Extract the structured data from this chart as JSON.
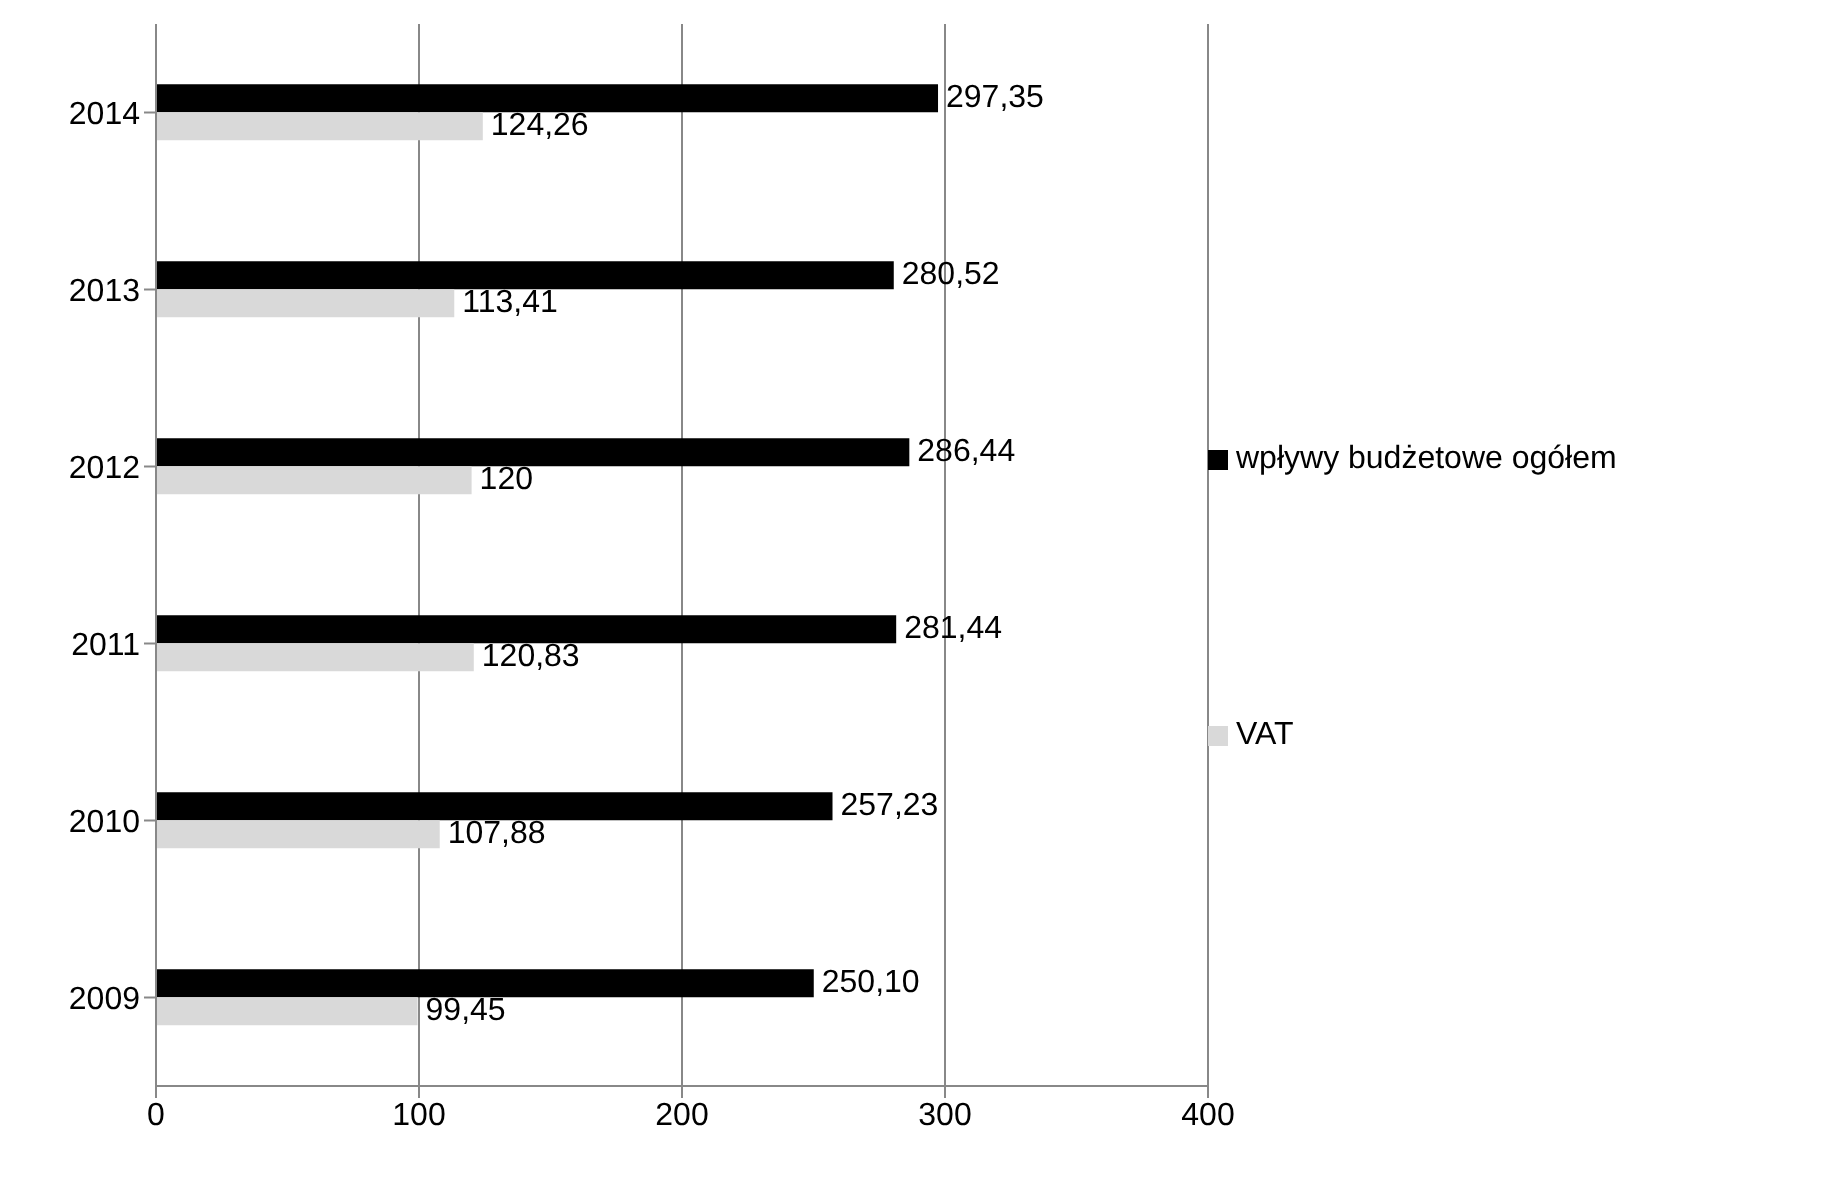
{
  "chart_data": {
    "type": "bar",
    "orientation": "horizontal",
    "categories": [
      "2014",
      "2013",
      "2012",
      "2011",
      "2010",
      "2009"
    ],
    "series": [
      {
        "name": "wpływy budżetowe ogółem",
        "color": "#000000",
        "values": [
          297.35,
          280.52,
          286.44,
          281.44,
          257.23,
          250.1
        ],
        "value_labels": [
          "297,35",
          "280,52",
          "286,44",
          "281,44",
          "257,23",
          "250,10"
        ]
      },
      {
        "name": "VAT",
        "color": "#d9d9d9",
        "values": [
          124.26,
          113.41,
          120,
          120.83,
          107.88,
          99.45
        ],
        "value_labels": [
          "124,26",
          "113,41",
          "120",
          "120,83",
          "107,88",
          "99,45"
        ]
      }
    ],
    "xlim": [
      0,
      400
    ],
    "xticks": [
      0,
      100,
      200,
      300,
      400
    ],
    "grid": "x",
    "legend": "right"
  }
}
